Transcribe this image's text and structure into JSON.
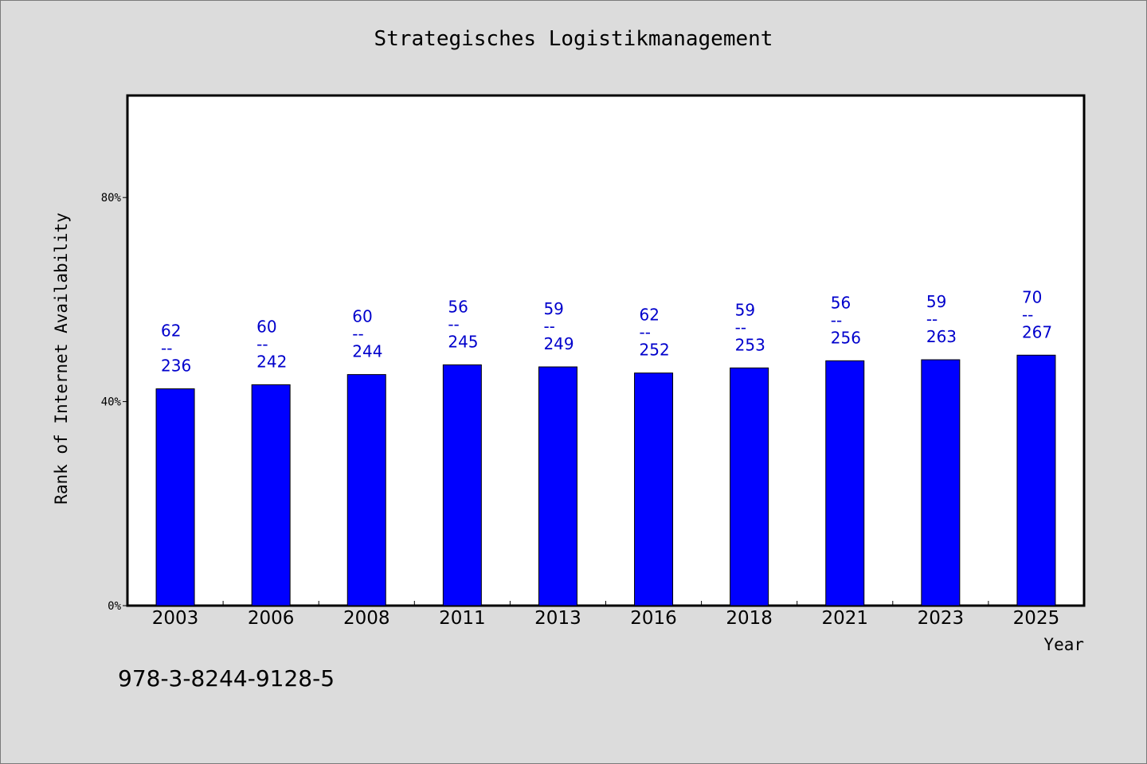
{
  "colors": {
    "bar": "#0000ff",
    "data_label": "#0000cc",
    "plot_bg": "#ffffff",
    "page_bg": "#dcdcdc"
  },
  "chart_data": {
    "type": "bar",
    "title": "Strategisches Logistikmanagement",
    "xlabel": "Year",
    "ylabel": "Rank of Internet Availability",
    "categories": [
      "2003",
      "2006",
      "2008",
      "2011",
      "2013",
      "2016",
      "2018",
      "2021",
      "2023",
      "2025"
    ],
    "series": [
      {
        "values": [
          42.5,
          43.3,
          45.3,
          47.2,
          46.8,
          45.6,
          46.6,
          48.0,
          48.2,
          49.1
        ]
      }
    ],
    "data_labels": [
      [
        "62",
        "--",
        "236"
      ],
      [
        "60",
        "--",
        "242"
      ],
      [
        "60",
        "--",
        "244"
      ],
      [
        "56",
        "--",
        "245"
      ],
      [
        "59",
        "--",
        "249"
      ],
      [
        "62",
        "--",
        "252"
      ],
      [
        "59",
        "--",
        "253"
      ],
      [
        "56",
        "--",
        "256"
      ],
      [
        "59",
        "--",
        "263"
      ],
      [
        "70",
        "--",
        "267"
      ]
    ],
    "ylim": [
      0,
      100
    ],
    "yticks": [
      0,
      40,
      80
    ],
    "ytick_labels": [
      "0%",
      "40%",
      "80%"
    ],
    "grid": false,
    "legend": "none"
  },
  "footer": {
    "isbn": "978-3-8244-9128-5"
  }
}
